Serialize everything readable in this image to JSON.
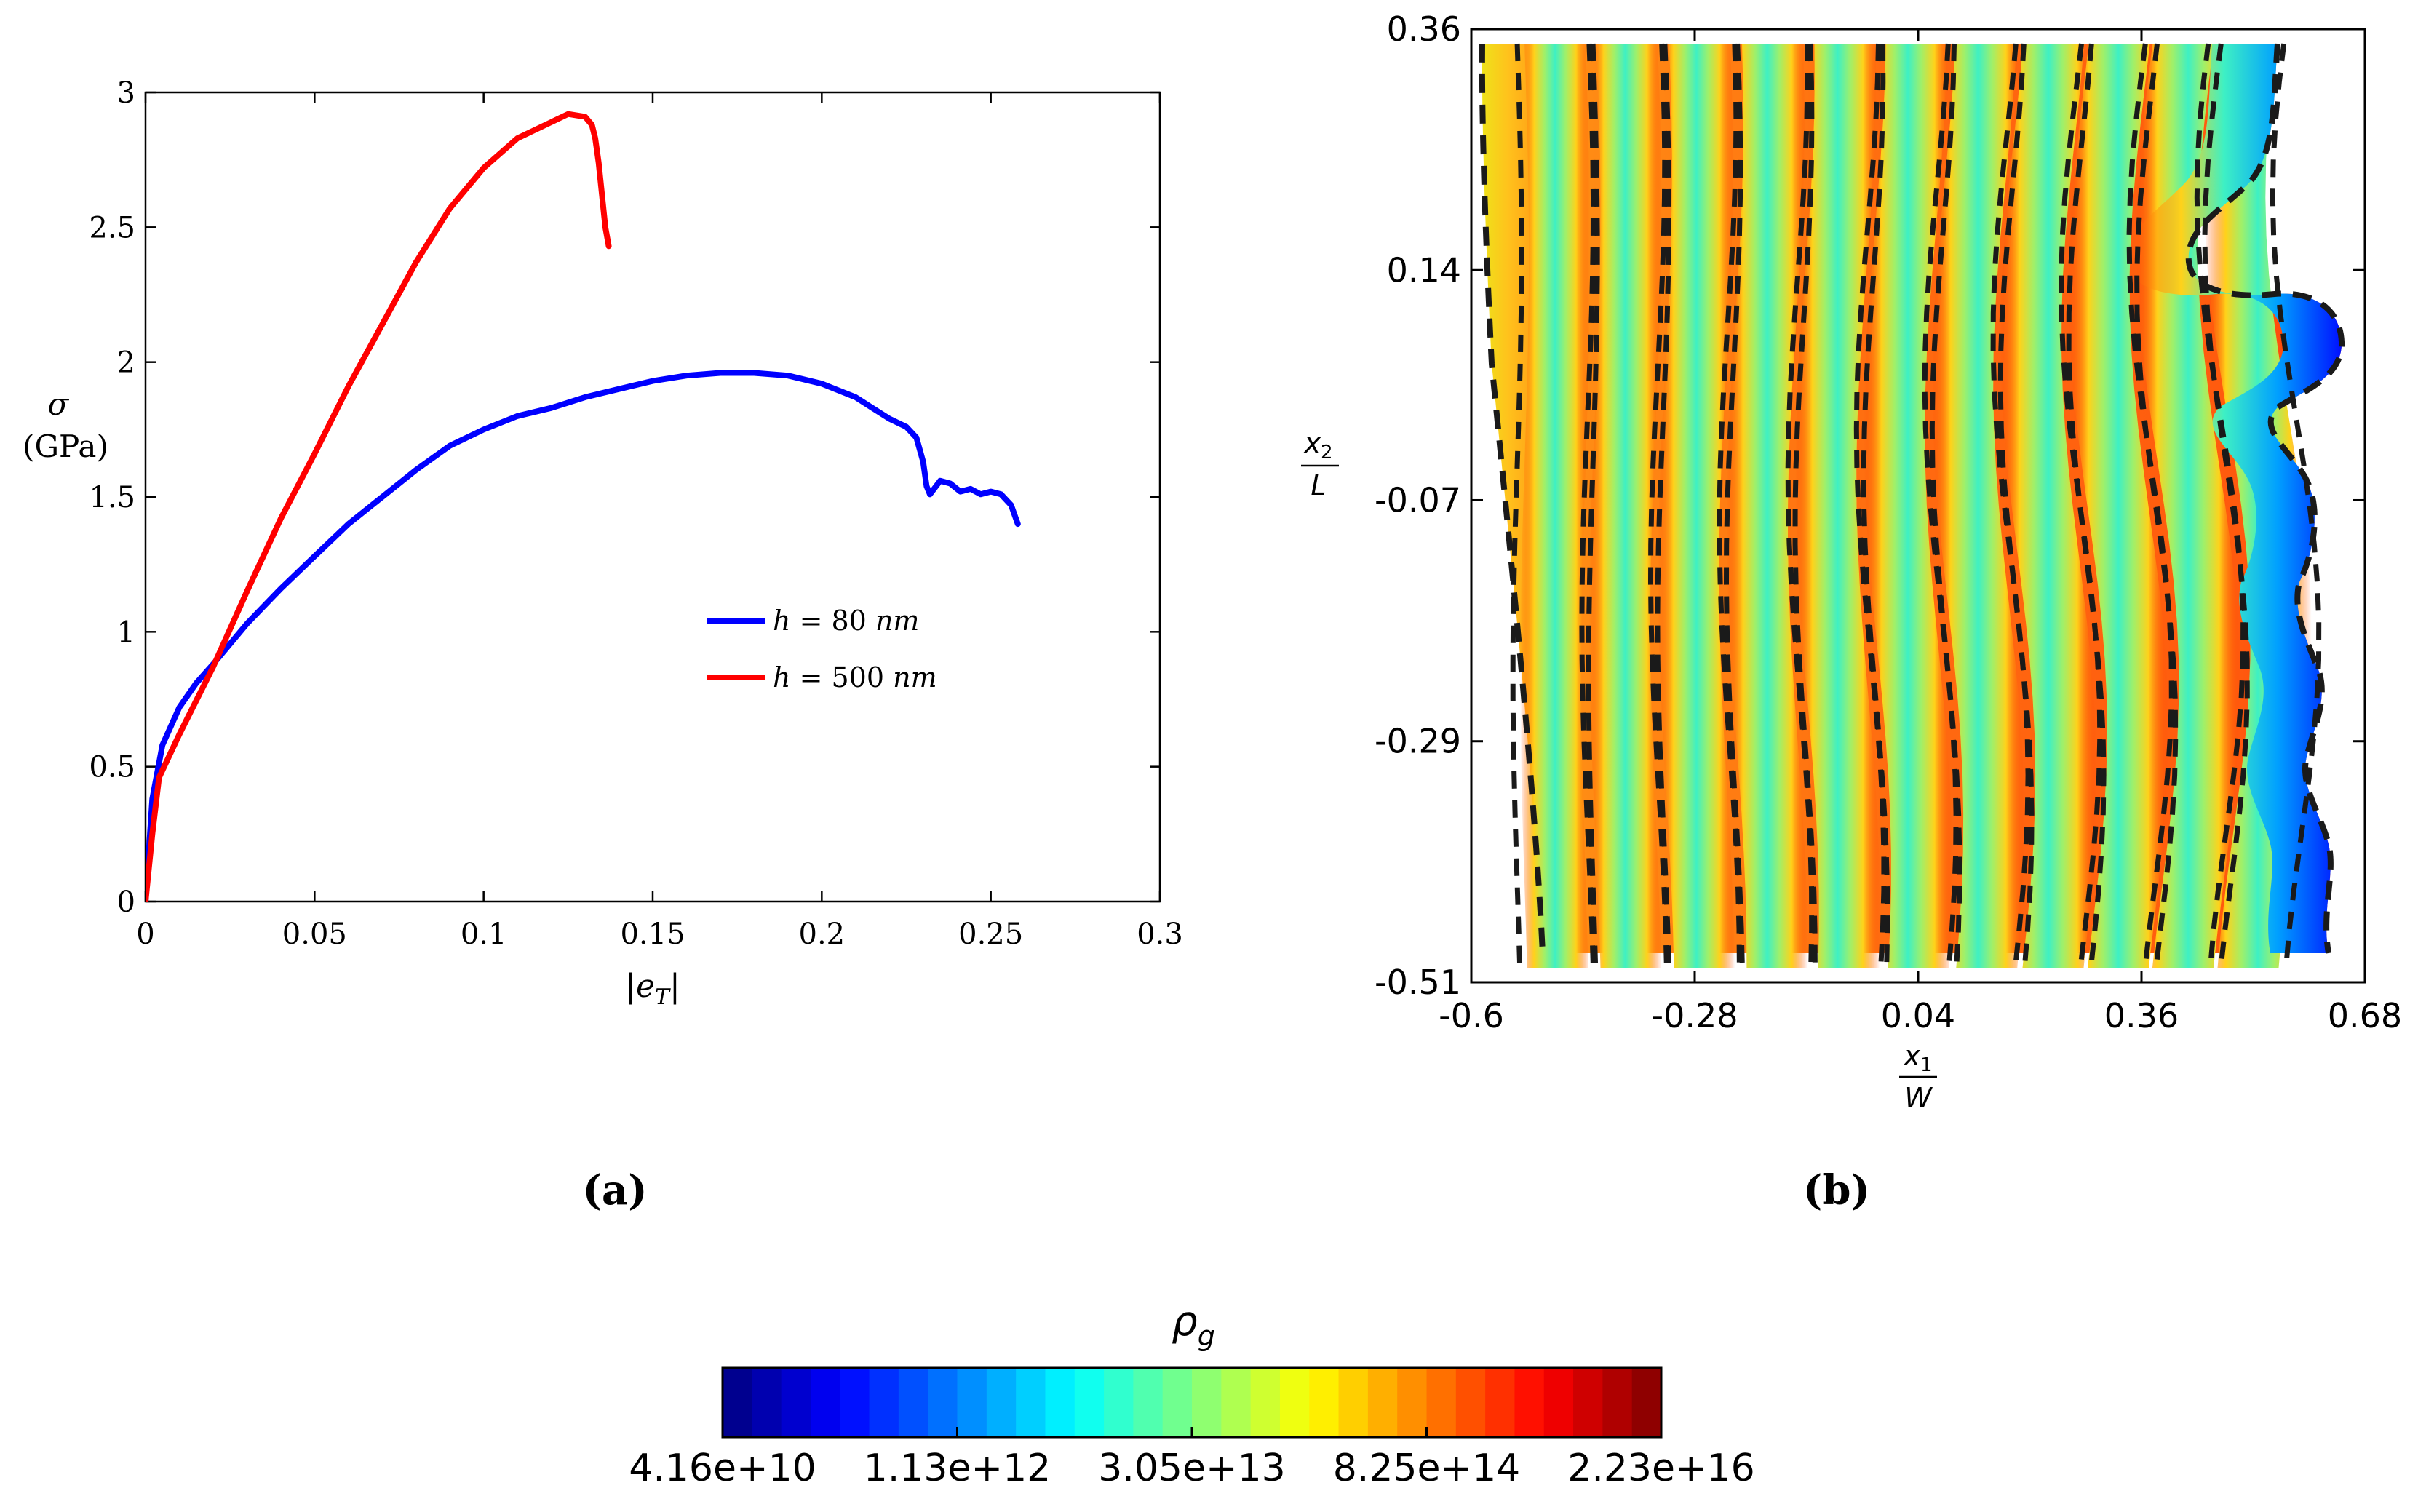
{
  "chart_data": [
    {
      "type": "line",
      "panel_label": "(a)",
      "title": "",
      "xlabel": "|e_T|",
      "xlabel_main": "|e",
      "xlabel_sub": "T",
      "xlabel_end": "|",
      "ylabel": "σ",
      "ylabel_line2": "(GPa)",
      "xlim": [
        0,
        0.3
      ],
      "ylim": [
        0,
        3
      ],
      "x_ticks": [
        0,
        0.05,
        0.1,
        0.15,
        0.2,
        0.25,
        0.3
      ],
      "x_tick_labels": [
        "0",
        "0.05",
        "0.1",
        "0.15",
        "0.2",
        "0.25",
        "0.3"
      ],
      "y_ticks": [
        0,
        0.5,
        1,
        1.5,
        2,
        2.5,
        3
      ],
      "y_tick_labels": [
        "0",
        "0.5",
        "1",
        "1.5",
        "2",
        "2.5",
        "3"
      ],
      "legend_position": "center-right",
      "series": [
        {
          "name": "h = 80 nm",
          "label_var": "h",
          "label_eq": "= 80",
          "label_unit": "nm",
          "color": "#0000ff",
          "x": [
            0,
            0.002,
            0.005,
            0.01,
            0.015,
            0.02,
            0.03,
            0.04,
            0.05,
            0.06,
            0.07,
            0.08,
            0.09,
            0.1,
            0.11,
            0.12,
            0.13,
            0.14,
            0.15,
            0.16,
            0.17,
            0.18,
            0.19,
            0.2,
            0.21,
            0.215,
            0.22,
            0.225,
            0.228,
            0.23,
            0.231,
            0.232,
            0.235,
            0.238,
            0.241,
            0.244,
            0.247,
            0.25,
            0.253,
            0.256,
            0.258
          ],
          "y": [
            0,
            0.38,
            0.58,
            0.72,
            0.81,
            0.88,
            1.03,
            1.16,
            1.28,
            1.4,
            1.5,
            1.6,
            1.69,
            1.75,
            1.8,
            1.83,
            1.87,
            1.9,
            1.93,
            1.95,
            1.96,
            1.96,
            1.95,
            1.92,
            1.87,
            1.83,
            1.79,
            1.76,
            1.72,
            1.63,
            1.54,
            1.51,
            1.56,
            1.55,
            1.52,
            1.53,
            1.51,
            1.52,
            1.51,
            1.47,
            1.4
          ]
        },
        {
          "name": "h = 500 nm",
          "label_var": "h",
          "label_eq": "= 500",
          "label_unit": "nm",
          "color": "#ff0000",
          "x": [
            0,
            0.002,
            0.004,
            0.01,
            0.02,
            0.03,
            0.04,
            0.05,
            0.06,
            0.07,
            0.08,
            0.09,
            0.1,
            0.11,
            0.12,
            0.125,
            0.13,
            0.132,
            0.133,
            0.134,
            0.135,
            0.136,
            0.137
          ],
          "y": [
            0,
            0.25,
            0.46,
            0.62,
            0.87,
            1.15,
            1.42,
            1.66,
            1.91,
            2.14,
            2.37,
            2.57,
            2.72,
            2.83,
            2.89,
            2.92,
            2.91,
            2.88,
            2.83,
            2.74,
            2.62,
            2.5,
            2.43
          ]
        }
      ]
    },
    {
      "type": "heatmap",
      "panel_label": "(b)",
      "title": "",
      "xlabel": "x1/W",
      "xlabel_var": "x",
      "xlabel_sub": "1",
      "xlabel_den": "W",
      "ylabel": "x2/L",
      "ylabel_var": "x",
      "ylabel_sub": "2",
      "ylabel_den": "L",
      "xlim": [
        -0.6,
        0.68
      ],
      "ylim": [
        -0.51,
        0.36
      ],
      "x_ticks": [
        -0.6,
        -0.28,
        0.04,
        0.36,
        0.68
      ],
      "x_tick_labels": [
        "-0.6",
        "-0.28",
        "0.04",
        "0.36",
        "0.68"
      ],
      "y_ticks": [
        -0.51,
        -0.29,
        -0.07,
        0.14,
        0.36
      ],
      "y_tick_labels": [
        "-0.51",
        "-0.29",
        "-0.07",
        "0.14",
        "0.36"
      ],
      "description_fields": "dislocation density field with vertical bands; dashed contour lines",
      "band_centers_x1": [
        -0.48,
        -0.38,
        -0.28,
        -0.18,
        -0.08,
        0.02,
        0.12,
        0.22,
        0.32,
        0.42,
        0.52
      ],
      "left_edge_x1": -0.6,
      "specimen_top_x1": [
        -0.6,
        0.58
      ],
      "specimen_bottom_x1": [
        -0.52,
        0.62
      ],
      "colorbar": {
        "label": "ρ",
        "label_sub": "g",
        "colormap": "jet",
        "levels": 32,
        "scale": "log",
        "min": 41600000000.0,
        "max": 2.23e+16,
        "tick_labels": [
          "4.16e+10",
          "1.13e+12",
          "3.05e+13",
          "8.25e+14",
          "2.23e+16"
        ]
      }
    }
  ]
}
